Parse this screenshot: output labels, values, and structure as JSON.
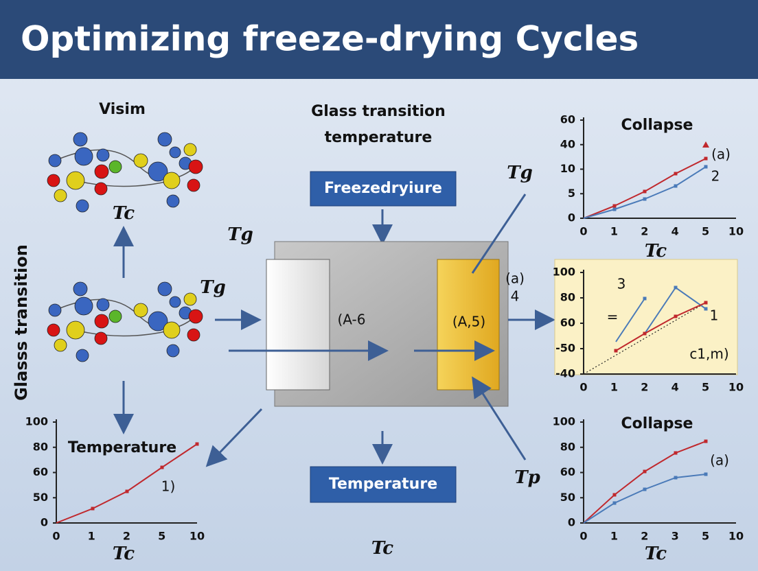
{
  "header": {
    "title": "Optimizing freeze-drying Cycles"
  },
  "left": {
    "top_label": "Visim",
    "tc_label": "Tc",
    "side_label": "Glasss transition",
    "chart": {
      "title": "Temperature",
      "note": "1)",
      "x_axis_label": "Tc",
      "y_labels": [
        "100",
        "80",
        "60",
        "50",
        "0"
      ],
      "x_labels": [
        "0",
        "1",
        "2",
        "5",
        "10"
      ]
    }
  },
  "center": {
    "heading": [
      "Glass transition",
      "temperature"
    ],
    "top_button": "Freezedryiure",
    "bottom_button": "Temperature",
    "left_panel": "(A-6",
    "right_panel": "(A,5)",
    "tg_labels": [
      "Tg",
      "Tg",
      "Tg"
    ],
    "side_note": [
      "(a)",
      "4"
    ],
    "tp_label": "Tp",
    "tc_label": "Tc"
  },
  "right": {
    "charts": [
      {
        "title": "Collapse",
        "x_axis_label": "Tc",
        "notes": [
          "(a)",
          "2"
        ],
        "y_labels": [
          "60",
          "40",
          "10",
          "5",
          "0"
        ],
        "x_labels": [
          "0",
          "1",
          "2",
          "4",
          "5",
          "10"
        ]
      },
      {
        "notes": [
          "3",
          "=",
          "1",
          "c1,m)"
        ],
        "y_labels": [
          "100",
          "80",
          "60",
          "-50",
          "-40"
        ],
        "x_labels": [
          "0",
          "1",
          "2",
          "4",
          "5",
          "10"
        ]
      },
      {
        "title": "Collapse",
        "x_axis_label": "Tc",
        "notes": [
          "(a)"
        ],
        "y_labels": [
          "100",
          "80",
          "60",
          "50",
          "0"
        ],
        "x_labels": [
          "0",
          "1",
          "2",
          "3",
          "5",
          "10"
        ]
      }
    ]
  }
}
